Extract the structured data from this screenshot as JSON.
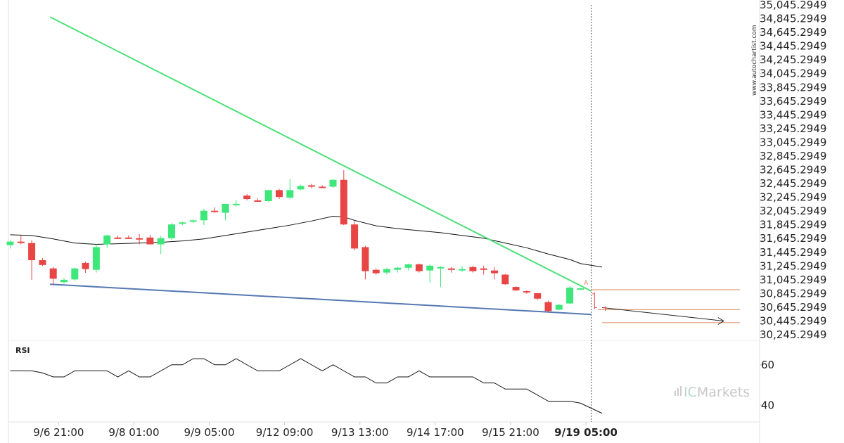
{
  "watermark": "www.autochartist.com",
  "brand": {
    "prefix": "IC",
    "name": "Markets"
  },
  "colors": {
    "bull": "#3de77a",
    "bear": "#e84545",
    "resistance": "#4ce07a",
    "support": "#5478b2",
    "level": "#d9875a",
    "ma": "#111111",
    "rsi": "#111111"
  },
  "chart_data": [
    {
      "type": "candlestick",
      "title": "",
      "ylim": [
        30245.2949,
        35045.2949
      ],
      "y_ticks": [
        "35,045.2949",
        "34,845.2949",
        "34,645.2949",
        "34,445.2949",
        "34,245.2949",
        "34,045.2949",
        "33,845.2949",
        "33,645.2949",
        "33,445.2949",
        "33,245.2949",
        "33,045.2949",
        "32,845.2949",
        "32,645.2949",
        "32,445.2949",
        "32,245.2949",
        "32,045.2949",
        "31,845.2949",
        "31,645.2949",
        "31,445.2949",
        "31,245.2949",
        "31,045.2949",
        "30,845.2949",
        "30,645.2949",
        "30,445.2949",
        "30,245.2949"
      ],
      "x_ticks": [
        {
          "label": "9/6 21:00",
          "index": 4.5
        },
        {
          "label": "9/8 01:00",
          "index": 11.5
        },
        {
          "label": "9/9 05:00",
          "index": 18.5
        },
        {
          "label": "9/12 09:00",
          "index": 25.5
        },
        {
          "label": "9/13 13:00",
          "index": 32.5
        },
        {
          "label": "9/14 17:00",
          "index": 39.5
        },
        {
          "label": "9/15 21:00",
          "index": 46.5
        },
        {
          "label": "9/19 05:00",
          "index": 53.5,
          "bold": true
        }
      ],
      "candles": [
        {
          "o": 31550,
          "h": 31620,
          "l": 31500,
          "c": 31600
        },
        {
          "o": 31600,
          "h": 31690,
          "l": 31560,
          "c": 31580
        },
        {
          "o": 31580,
          "h": 31620,
          "l": 31045,
          "c": 31330
        },
        {
          "o": 31330,
          "h": 31360,
          "l": 31245,
          "c": 31260
        },
        {
          "o": 31210,
          "h": 31230,
          "l": 30965,
          "c": 31060
        },
        {
          "o": 31010,
          "h": 31070,
          "l": 30990,
          "c": 31045
        },
        {
          "o": 31050,
          "h": 31220,
          "l": 31030,
          "c": 31210
        },
        {
          "o": 31290,
          "h": 31310,
          "l": 31145,
          "c": 31200
        },
        {
          "o": 31190,
          "h": 31560,
          "l": 31150,
          "c": 31520
        },
        {
          "o": 31560,
          "h": 31700,
          "l": 31510,
          "c": 31690
        },
        {
          "o": 31660,
          "h": 31690,
          "l": 31640,
          "c": 31650
        },
        {
          "o": 31660,
          "h": 31690,
          "l": 31640,
          "c": 31650
        },
        {
          "o": 31650,
          "h": 31710,
          "l": 31560,
          "c": 31640
        },
        {
          "o": 31660,
          "h": 31700,
          "l": 31560,
          "c": 31560
        },
        {
          "o": 31560,
          "h": 31680,
          "l": 31420,
          "c": 31650
        },
        {
          "o": 31650,
          "h": 31870,
          "l": 31630,
          "c": 31850
        },
        {
          "o": 31870,
          "h": 31890,
          "l": 31840,
          "c": 31880
        },
        {
          "o": 31890,
          "h": 31920,
          "l": 31870,
          "c": 31910
        },
        {
          "o": 31910,
          "h": 32080,
          "l": 31840,
          "c": 32050
        },
        {
          "o": 32050,
          "h": 32100,
          "l": 32020,
          "c": 32030
        },
        {
          "o": 32020,
          "h": 32150,
          "l": 31910,
          "c": 32150
        },
        {
          "o": 32140,
          "h": 32200,
          "l": 32110,
          "c": 32150
        },
        {
          "o": 32270,
          "h": 32290,
          "l": 32200,
          "c": 32220
        },
        {
          "o": 32200,
          "h": 32230,
          "l": 32180,
          "c": 32190
        },
        {
          "o": 32190,
          "h": 32350,
          "l": 32180,
          "c": 32350
        },
        {
          "o": 32350,
          "h": 32370,
          "l": 32220,
          "c": 32250
        },
        {
          "o": 32240,
          "h": 32510,
          "l": 32220,
          "c": 32350
        },
        {
          "o": 32360,
          "h": 32430,
          "l": 32350,
          "c": 32410
        },
        {
          "o": 32420,
          "h": 32440,
          "l": 32380,
          "c": 32410
        },
        {
          "o": 32400,
          "h": 32420,
          "l": 32380,
          "c": 32390
        },
        {
          "o": 32400,
          "h": 32510,
          "l": 32380,
          "c": 32500
        },
        {
          "o": 32500,
          "h": 32640,
          "l": 31840,
          "c": 31850
        },
        {
          "o": 31850,
          "h": 31900,
          "l": 31470,
          "c": 31500
        },
        {
          "o": 31520,
          "h": 31540,
          "l": 31050,
          "c": 31170
        },
        {
          "o": 31190,
          "h": 31210,
          "l": 31120,
          "c": 31140
        },
        {
          "o": 31150,
          "h": 31220,
          "l": 31120,
          "c": 31200
        },
        {
          "o": 31190,
          "h": 31240,
          "l": 31150,
          "c": 31220
        },
        {
          "o": 31220,
          "h": 31280,
          "l": 31180,
          "c": 31270
        },
        {
          "o": 31270,
          "h": 31280,
          "l": 31150,
          "c": 31170
        },
        {
          "o": 31180,
          "h": 31270,
          "l": 31000,
          "c": 31250
        },
        {
          "o": 31230,
          "h": 31245,
          "l": 30940,
          "c": 31230
        },
        {
          "o": 31210,
          "h": 31230,
          "l": 31150,
          "c": 31190
        },
        {
          "o": 31180,
          "h": 31240,
          "l": 31160,
          "c": 31200
        },
        {
          "o": 31230,
          "h": 31250,
          "l": 31150,
          "c": 31170
        },
        {
          "o": 31210,
          "h": 31250,
          "l": 31120,
          "c": 31190
        },
        {
          "o": 31180,
          "h": 31230,
          "l": 31050,
          "c": 31140
        },
        {
          "o": 31120,
          "h": 31130,
          "l": 30970,
          "c": 30980
        },
        {
          "o": 30940,
          "h": 30950,
          "l": 30880,
          "c": 30890
        },
        {
          "o": 30880,
          "h": 30890,
          "l": 30840,
          "c": 30860
        },
        {
          "o": 30850,
          "h": 30850,
          "l": 30750,
          "c": 30770
        },
        {
          "o": 30720,
          "h": 30740,
          "l": 30580,
          "c": 30590
        },
        {
          "o": 30610,
          "h": 30690,
          "l": 30600,
          "c": 30680
        },
        {
          "o": 30700,
          "h": 30950,
          "l": 30690,
          "c": 30930
        },
        {
          "o": 30910,
          "h": 30930,
          "l": 30900,
          "c": 30920
        }
      ],
      "live_candles": [
        {
          "index": 54.3,
          "o": 30840,
          "h": 30860,
          "l": 30620,
          "c": 30640
        },
        {
          "index": 55.3,
          "o": 30640,
          "h": 30660,
          "l": 30590,
          "c": 30630
        }
      ],
      "resistance_line": {
        "label": "Resistance",
        "start": {
          "index": 3.7,
          "value": 34870
        },
        "end": {
          "index": 54.0,
          "value": 30880
        }
      },
      "support_line": {
        "label": "Support",
        "start": {
          "index": 3.7,
          "value": 30980
        },
        "end": {
          "index": 54.0,
          "value": 30540
        }
      },
      "projection": {
        "start": {
          "index": 55.0,
          "value": 30640
        },
        "end": {
          "index": 66.3,
          "value": 30445
        }
      },
      "levels": [
        {
          "value": 30900,
          "from_index": 54.0,
          "to_index": 67.8
        },
        {
          "value": 30610,
          "from_index": 54.6,
          "to_index": 67.8
        },
        {
          "value": 30420,
          "from_index": 55.0,
          "to_index": 67.8
        }
      ],
      "annotation": {
        "text": "A",
        "index": 53.3,
        "value": 30970
      },
      "moving_average": [
        {
          "i": 0,
          "v": 31700
        },
        {
          "i": 2,
          "v": 31690
        },
        {
          "i": 4,
          "v": 31640
        },
        {
          "i": 6,
          "v": 31580
        },
        {
          "i": 8,
          "v": 31560
        },
        {
          "i": 10,
          "v": 31570
        },
        {
          "i": 12,
          "v": 31580
        },
        {
          "i": 14,
          "v": 31590
        },
        {
          "i": 16,
          "v": 31610
        },
        {
          "i": 18,
          "v": 31640
        },
        {
          "i": 20,
          "v": 31690
        },
        {
          "i": 22,
          "v": 31740
        },
        {
          "i": 24,
          "v": 31790
        },
        {
          "i": 26,
          "v": 31840
        },
        {
          "i": 28,
          "v": 31900
        },
        {
          "i": 30,
          "v": 31970
        },
        {
          "i": 31,
          "v": 31960
        },
        {
          "i": 32,
          "v": 31910
        },
        {
          "i": 34,
          "v": 31830
        },
        {
          "i": 36,
          "v": 31790
        },
        {
          "i": 38,
          "v": 31760
        },
        {
          "i": 40,
          "v": 31730
        },
        {
          "i": 42,
          "v": 31690
        },
        {
          "i": 44,
          "v": 31650
        },
        {
          "i": 46,
          "v": 31580
        },
        {
          "i": 48,
          "v": 31510
        },
        {
          "i": 50,
          "v": 31420
        },
        {
          "i": 52,
          "v": 31340
        },
        {
          "i": 53,
          "v": 31280
        },
        {
          "i": 55,
          "v": 31230
        }
      ]
    },
    {
      "type": "line",
      "title": "RSI",
      "ylim": [
        30,
        70
      ],
      "y_ticks": [
        "60",
        "40"
      ],
      "series": [
        {
          "values": [
            {
              "i": 0,
              "v": 57
            },
            {
              "i": 1,
              "v": 57
            },
            {
              "i": 2,
              "v": 57
            },
            {
              "i": 3,
              "v": 56
            },
            {
              "i": 4,
              "v": 54
            },
            {
              "i": 5,
              "v": 54
            },
            {
              "i": 6,
              "v": 57
            },
            {
              "i": 7,
              "v": 57
            },
            {
              "i": 8,
              "v": 57
            },
            {
              "i": 9,
              "v": 57
            },
            {
              "i": 10,
              "v": 54
            },
            {
              "i": 11,
              "v": 57
            },
            {
              "i": 12,
              "v": 54
            },
            {
              "i": 13,
              "v": 54
            },
            {
              "i": 14,
              "v": 57
            },
            {
              "i": 15,
              "v": 60
            },
            {
              "i": 16,
              "v": 60
            },
            {
              "i": 17,
              "v": 63
            },
            {
              "i": 18,
              "v": 63
            },
            {
              "i": 19,
              "v": 60
            },
            {
              "i": 20,
              "v": 60
            },
            {
              "i": 21,
              "v": 63
            },
            {
              "i": 22,
              "v": 60
            },
            {
              "i": 23,
              "v": 57
            },
            {
              "i": 24,
              "v": 57
            },
            {
              "i": 25,
              "v": 57
            },
            {
              "i": 26,
              "v": 60
            },
            {
              "i": 27,
              "v": 63
            },
            {
              "i": 28,
              "v": 60
            },
            {
              "i": 29,
              "v": 57
            },
            {
              "i": 30,
              "v": 60
            },
            {
              "i": 31,
              "v": 57
            },
            {
              "i": 32,
              "v": 54
            },
            {
              "i": 33,
              "v": 54
            },
            {
              "i": 34,
              "v": 51
            },
            {
              "i": 35,
              "v": 51
            },
            {
              "i": 36,
              "v": 54
            },
            {
              "i": 37,
              "v": 54
            },
            {
              "i": 38,
              "v": 57
            },
            {
              "i": 39,
              "v": 54
            },
            {
              "i": 40,
              "v": 54
            },
            {
              "i": 41,
              "v": 54
            },
            {
              "i": 42,
              "v": 54
            },
            {
              "i": 43,
              "v": 54
            },
            {
              "i": 44,
              "v": 51
            },
            {
              "i": 45,
              "v": 51
            },
            {
              "i": 46,
              "v": 48
            },
            {
              "i": 47,
              "v": 48
            },
            {
              "i": 48,
              "v": 48
            },
            {
              "i": 49,
              "v": 45
            },
            {
              "i": 50,
              "v": 42
            },
            {
              "i": 51,
              "v": 42
            },
            {
              "i": 52,
              "v": 42
            },
            {
              "i": 53,
              "v": 41
            },
            {
              "i": 55,
              "v": 36
            }
          ]
        }
      ]
    }
  ]
}
